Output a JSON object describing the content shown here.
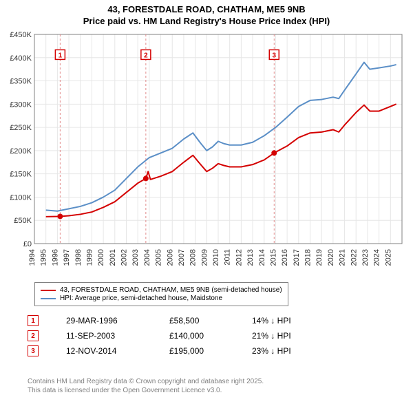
{
  "title_line1": "43, FORESTDALE ROAD, CHATHAM, ME5 9NB",
  "title_line2": "Price paid vs. HM Land Registry's House Price Index (HPI)",
  "chart": {
    "type": "line",
    "background_color": "#ffffff",
    "plot_background_color": "#ffffff",
    "grid_color": "#e6e6e6",
    "axis_color": "#808080",
    "tick_font_size": 11,
    "tick_color": "#333333",
    "x_min": 1994,
    "x_max": 2026,
    "x_ticks": [
      1994,
      1995,
      1996,
      1997,
      1998,
      1999,
      2000,
      2001,
      2002,
      2003,
      2004,
      2005,
      2006,
      2007,
      2008,
      2009,
      2010,
      2011,
      2012,
      2013,
      2014,
      2015,
      2016,
      2017,
      2018,
      2019,
      2020,
      2021,
      2022,
      2023,
      2024,
      2025
    ],
    "y_min": 0,
    "y_max": 450000,
    "y_ticks": [
      0,
      50000,
      100000,
      150000,
      200000,
      250000,
      300000,
      350000,
      400000,
      450000
    ],
    "y_tick_labels": [
      "£0",
      "£50K",
      "£100K",
      "£150K",
      "£200K",
      "£250K",
      "£300K",
      "£350K",
      "£400K",
      "£450K"
    ],
    "series": [
      {
        "name": "property",
        "legend_label": "43, FORESTDALE ROAD, CHATHAM, ME5 9NB (semi-detached house)",
        "color": "#d40000",
        "line_width": 2,
        "data": [
          [
            1995.0,
            58000
          ],
          [
            1996.24,
            58500
          ],
          [
            1997.0,
            60000
          ],
          [
            1998.0,
            63000
          ],
          [
            1999.0,
            68000
          ],
          [
            2000.0,
            78000
          ],
          [
            2001.0,
            90000
          ],
          [
            2002.0,
            110000
          ],
          [
            2003.0,
            130000
          ],
          [
            2003.7,
            140000
          ],
          [
            2003.9,
            155000
          ],
          [
            2004.1,
            138000
          ],
          [
            2005.0,
            145000
          ],
          [
            2006.0,
            155000
          ],
          [
            2007.0,
            175000
          ],
          [
            2007.8,
            190000
          ],
          [
            2008.3,
            175000
          ],
          [
            2009.0,
            155000
          ],
          [
            2009.5,
            162000
          ],
          [
            2010.0,
            172000
          ],
          [
            2010.5,
            168000
          ],
          [
            2011.0,
            165000
          ],
          [
            2012.0,
            165000
          ],
          [
            2013.0,
            170000
          ],
          [
            2014.0,
            180000
          ],
          [
            2014.87,
            195000
          ],
          [
            2016.0,
            210000
          ],
          [
            2017.0,
            228000
          ],
          [
            2018.0,
            238000
          ],
          [
            2019.0,
            240000
          ],
          [
            2020.0,
            245000
          ],
          [
            2020.5,
            240000
          ],
          [
            2021.0,
            255000
          ],
          [
            2022.0,
            282000
          ],
          [
            2022.7,
            298000
          ],
          [
            2023.2,
            285000
          ],
          [
            2024.0,
            285000
          ],
          [
            2025.0,
            295000
          ],
          [
            2025.5,
            300000
          ]
        ]
      },
      {
        "name": "hpi",
        "legend_label": "HPI: Average price, semi-detached house, Maidstone",
        "color": "#5b8fc7",
        "line_width": 2,
        "data": [
          [
            1995.0,
            72000
          ],
          [
            1996.0,
            70000
          ],
          [
            1997.0,
            75000
          ],
          [
            1998.0,
            80000
          ],
          [
            1999.0,
            88000
          ],
          [
            2000.0,
            100000
          ],
          [
            2001.0,
            115000
          ],
          [
            2002.0,
            140000
          ],
          [
            2003.0,
            165000
          ],
          [
            2004.0,
            185000
          ],
          [
            2005.0,
            195000
          ],
          [
            2006.0,
            205000
          ],
          [
            2007.0,
            225000
          ],
          [
            2007.8,
            238000
          ],
          [
            2008.5,
            215000
          ],
          [
            2009.0,
            200000
          ],
          [
            2009.5,
            208000
          ],
          [
            2010.0,
            220000
          ],
          [
            2010.5,
            215000
          ],
          [
            2011.0,
            212000
          ],
          [
            2012.0,
            212000
          ],
          [
            2013.0,
            218000
          ],
          [
            2014.0,
            232000
          ],
          [
            2015.0,
            250000
          ],
          [
            2016.0,
            272000
          ],
          [
            2017.0,
            295000
          ],
          [
            2018.0,
            308000
          ],
          [
            2019.0,
            310000
          ],
          [
            2020.0,
            315000
          ],
          [
            2020.5,
            312000
          ],
          [
            2021.0,
            330000
          ],
          [
            2022.0,
            365000
          ],
          [
            2022.7,
            390000
          ],
          [
            2023.2,
            375000
          ],
          [
            2024.0,
            378000
          ],
          [
            2025.0,
            382000
          ],
          [
            2025.5,
            385000
          ]
        ]
      }
    ],
    "sale_markers": [
      {
        "num": "1",
        "x": 1996.24,
        "y": 58500,
        "label_y": 405000,
        "color": "#d40000"
      },
      {
        "num": "2",
        "x": 2003.7,
        "y": 140000,
        "label_y": 405000,
        "color": "#d40000"
      },
      {
        "num": "3",
        "x": 2014.87,
        "y": 195000,
        "label_y": 405000,
        "color": "#d40000"
      }
    ],
    "marker_line_color": "#e28a8a",
    "marker_dot_radius": 4
  },
  "legend": {
    "border_color": "#808080",
    "font_size": 10
  },
  "sales_table": {
    "marker_border_color": "#d40000",
    "marker_text_color": "#d40000",
    "rows": [
      {
        "num": "1",
        "date": "29-MAR-1996",
        "price": "£58,500",
        "delta": "14% ↓ HPI"
      },
      {
        "num": "2",
        "date": "11-SEP-2003",
        "price": "£140,000",
        "delta": "21% ↓ HPI"
      },
      {
        "num": "3",
        "date": "12-NOV-2014",
        "price": "£195,000",
        "delta": "23% ↓ HPI"
      }
    ]
  },
  "footer_line1": "Contains HM Land Registry data © Crown copyright and database right 2025.",
  "footer_line2": "This data is licensed under the Open Government Licence v3.0.",
  "footer_color": "#808080"
}
